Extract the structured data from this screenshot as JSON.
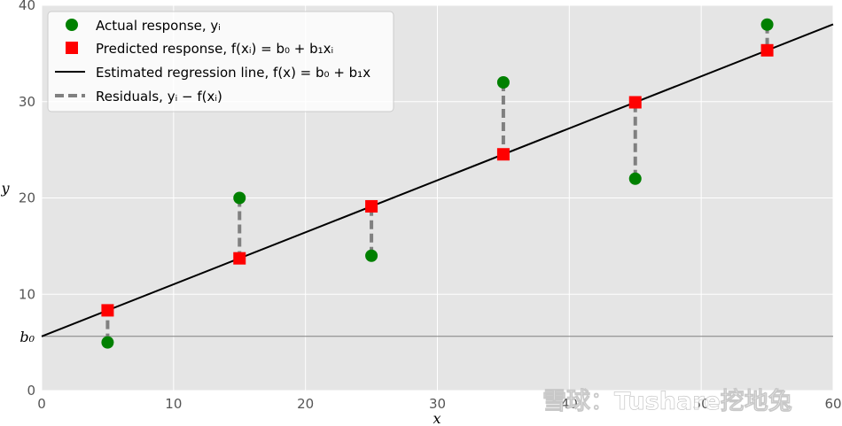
{
  "chart_data": {
    "type": "scatter",
    "xlabel": "x",
    "ylabel": "y",
    "xlim": [
      0,
      60
    ],
    "ylim": [
      0,
      40
    ],
    "xticks": [
      "0",
      "10",
      "20",
      "30",
      "40",
      "50",
      "60"
    ],
    "yticks": [
      "0",
      "10",
      "20",
      "30",
      "40"
    ],
    "b0_label": "b₀",
    "grid": true,
    "legend_position": "top-left",
    "regression": {
      "intercept": 5.63,
      "slope": 0.54
    },
    "x": [
      5,
      15,
      25,
      35,
      45,
      55
    ],
    "series": [
      {
        "name": "Actual response, yᵢ",
        "kind": "scatter",
        "marker": "circle",
        "color": "#008000",
        "values": [
          5,
          20,
          14,
          32,
          22,
          38
        ]
      },
      {
        "name": "Predicted response, f(xᵢ) = b₀ + b₁xᵢ",
        "kind": "scatter",
        "marker": "square",
        "color": "#ff0000",
        "values": [
          8.33,
          13.73,
          19.13,
          24.53,
          29.93,
          35.33
        ]
      },
      {
        "name": "Estimated regression line, f(x) = b₀ + b₁x",
        "kind": "line",
        "color": "#000000"
      },
      {
        "name": "Residuals, yᵢ − f(xᵢ)",
        "kind": "dashed",
        "color": "#808080"
      }
    ]
  },
  "watermark": "雪球：Tushare挖地兔",
  "colors": {
    "plot_background": "#e5e5e5",
    "grid": "#ffffff",
    "baseline": "#808080"
  }
}
